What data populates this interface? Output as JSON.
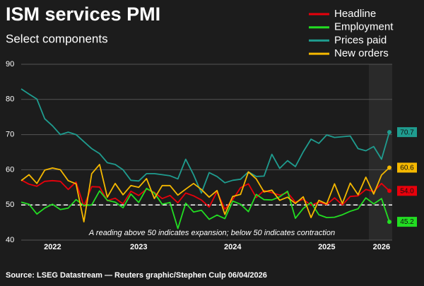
{
  "chart_data": {
    "type": "line",
    "title": "ISM services PMI",
    "subtitle": "Select components",
    "annotation": "A reading above 50 indicates expansion; below 50 indicates contraction",
    "source": "Source: LSEG Datastream — Reuters graphic/Stephen Culp 06/04/2026",
    "categories": [
      null,
      null,
      null,
      null,
      "2022",
      null,
      null,
      null,
      null,
      null,
      null,
      null,
      null,
      null,
      null,
      "2023",
      null,
      null,
      null,
      null,
      null,
      null,
      null,
      null,
      null,
      null,
      null,
      "2024",
      null,
      null,
      null,
      null,
      null,
      null,
      null,
      null,
      null,
      null,
      null,
      "2025",
      null,
      null,
      null,
      null,
      null,
      null,
      "2026",
      null
    ],
    "series": [
      {
        "name": "Headline",
        "color": "#e8000b",
        "values": [
          57.1,
          55.9,
          55.3,
          56.7,
          56.9,
          56.7,
          54.4,
          56.5,
          49.6,
          55.2,
          55.1,
          51.2,
          51.9,
          50.3,
          53.9,
          52.7,
          54.5,
          53.6,
          51.8,
          52.7,
          50.6,
          53.4,
          52.6,
          51.4,
          49.4,
          53.8,
          48.8,
          51.5,
          54.9,
          56.0,
          52.1,
          54.1,
          53.5,
          52.8,
          53.5,
          50.8,
          51.6,
          49.9,
          50.8,
          50.1,
          52.0,
          50.0,
          52.4,
          52.6,
          54.4,
          53.8,
          56.1,
          54.0
        ],
        "value_labels": [
          null,
          null,
          null,
          null,
          null,
          null,
          null,
          null,
          null,
          null,
          null,
          null,
          null,
          null,
          null,
          null,
          null,
          null,
          null,
          null,
          null,
          null,
          null,
          null,
          null,
          null,
          null,
          null,
          null,
          null,
          null,
          null,
          null,
          null,
          null,
          null,
          null,
          null,
          null,
          null,
          null,
          null,
          null,
          null,
          null,
          null,
          null,
          "54.0"
        ]
      },
      {
        "name": "Employment",
        "color": "#22dd22",
        "values": [
          50.8,
          50.2,
          47.4,
          49.1,
          50.2,
          48.7,
          49.1,
          51.5,
          49.8,
          50.0,
          54.0,
          51.3,
          50.8,
          49.2,
          53.1,
          50.7,
          54.7,
          53.4,
          50.2,
          50.7,
          43.3,
          50.5,
          48.0,
          48.5,
          45.9,
          47.1,
          46.1,
          51.1,
          50.2,
          48.1,
          53.0,
          51.5,
          51.4,
          52.3,
          53.9,
          46.2,
          49.0,
          50.7,
          47.2,
          46.4,
          46.5,
          47.2,
          48.2,
          48.9,
          52.0,
          50.3,
          51.8,
          45.2
        ],
        "value_labels": [
          null,
          null,
          null,
          null,
          null,
          null,
          null,
          null,
          null,
          null,
          null,
          null,
          null,
          null,
          null,
          null,
          null,
          null,
          null,
          null,
          null,
          null,
          null,
          null,
          null,
          null,
          null,
          null,
          null,
          null,
          null,
          null,
          null,
          null,
          null,
          null,
          null,
          null,
          null,
          null,
          null,
          null,
          null,
          null,
          null,
          null,
          null,
          "45.2"
        ]
      },
      {
        "name": "Prices paid",
        "color": "#1f9c8f",
        "values": [
          83.0,
          81.5,
          80.1,
          74.5,
          72.5,
          70.0,
          70.7,
          70.0,
          68.0,
          66.0,
          64.6,
          62.0,
          61.5,
          60.0,
          57.0,
          56.8,
          58.9,
          58.9,
          58.6,
          58.3,
          57.4,
          63.0,
          58.6,
          53.4,
          59.2,
          58.1,
          56.3,
          57.0,
          57.3,
          59.4,
          58.1,
          58.2,
          64.4,
          60.4,
          62.6,
          60.9,
          65.1,
          68.7,
          67.5,
          69.9,
          69.2,
          69.4,
          69.6,
          66.0,
          65.4,
          66.6,
          63.0,
          70.7
        ],
        "value_labels": [
          null,
          null,
          null,
          null,
          null,
          null,
          null,
          null,
          null,
          null,
          null,
          null,
          null,
          null,
          null,
          null,
          null,
          null,
          null,
          null,
          null,
          null,
          null,
          null,
          null,
          null,
          null,
          null,
          null,
          null,
          null,
          null,
          null,
          null,
          null,
          null,
          null,
          null,
          null,
          null,
          null,
          null,
          null,
          null,
          null,
          null,
          null,
          "70.7"
        ]
      },
      {
        "name": "New orders",
        "color": "#f5b800",
        "values": [
          56.9,
          58.6,
          56.1,
          59.9,
          60.5,
          60.0,
          56.9,
          56.0,
          45.2,
          58.9,
          61.5,
          52.2,
          56.1,
          52.9,
          55.5,
          55.0,
          57.5,
          51.8,
          55.5,
          55.5,
          52.8,
          54.5,
          56.1,
          54.4,
          52.2,
          54.1,
          47.3,
          52.4,
          53.0,
          59.4,
          57.4,
          53.7,
          54.2,
          51.3,
          52.2,
          50.4,
          52.3,
          46.4,
          51.3,
          50.3,
          56.0,
          50.4,
          56.2,
          52.9,
          57.9,
          53.1,
          58.5,
          60.6
        ],
        "value_labels": [
          null,
          null,
          null,
          null,
          null,
          null,
          null,
          null,
          null,
          null,
          null,
          null,
          null,
          null,
          null,
          null,
          null,
          null,
          null,
          null,
          null,
          null,
          null,
          null,
          null,
          null,
          null,
          null,
          null,
          null,
          null,
          null,
          null,
          null,
          null,
          null,
          null,
          null,
          null,
          null,
          null,
          null,
          null,
          null,
          null,
          null,
          null,
          "60.6"
        ]
      }
    ],
    "ylim": [
      40,
      90
    ],
    "yticks": [
      40,
      50,
      60,
      70,
      80,
      90
    ],
    "reference_line": 50,
    "grid": true
  }
}
